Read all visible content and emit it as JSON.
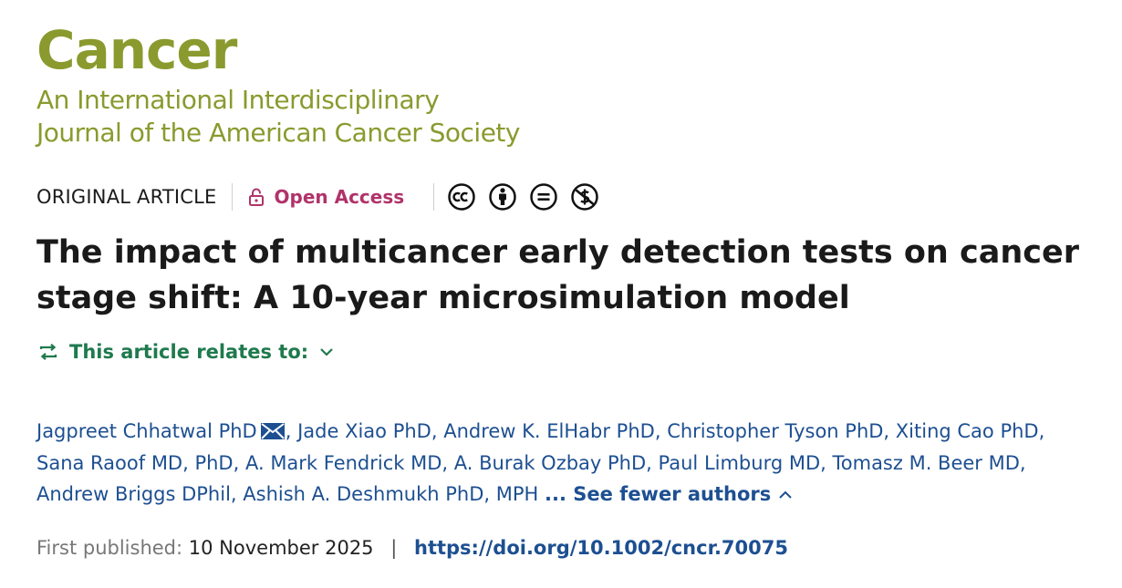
{
  "journal": {
    "name": "Cancer",
    "subtitle_line1": "An International Interdisciplinary",
    "subtitle_line2": "Journal of the American Cancer Society"
  },
  "meta": {
    "article_type": "ORIGINAL ARTICLE",
    "access_label": "Open Access",
    "license_icons": [
      "cc-icon",
      "by-icon",
      "nd-icon",
      "nc-icon"
    ]
  },
  "article": {
    "title": "The impact of multicancer early detection tests on cancer stage shift: A 10-year microsimulation model",
    "relates_label": "This article relates to:"
  },
  "authors": {
    "list": [
      "Jagpreet Chhatwal PhD",
      "Jade Xiao PhD",
      "Andrew K. ElHabr PhD",
      "Christopher Tyson PhD",
      "Xiting Cao PhD",
      "Sana Raoof MD, PhD",
      "A. Mark Fendrick MD",
      "A. Burak Ozbay PhD",
      "Paul Limburg MD",
      "Tomasz M. Beer MD",
      "Andrew Briggs DPhil",
      "Ashish A. Deshmukh PhD, MPH"
    ],
    "see_fewer": "... See fewer authors"
  },
  "publication": {
    "label": "First published:",
    "date": "10 November 2025",
    "separator": "|",
    "doi": "https://doi.org/10.1002/cncr.70075"
  },
  "colors": {
    "brand": "#8a9a2e",
    "open_access": "#b0336a",
    "relates": "#1f7a4d",
    "link": "#1d4f91"
  }
}
